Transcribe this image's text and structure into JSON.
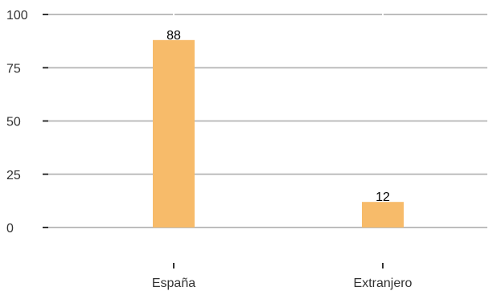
{
  "chart_data": {
    "type": "bar",
    "categories": [
      "España",
      "Extranjero"
    ],
    "values": [
      88,
      12
    ],
    "data_labels": [
      "88",
      "12"
    ],
    "y_ticks": [
      0,
      25,
      50,
      75,
      100
    ],
    "ylim": [
      0,
      100
    ],
    "title": "",
    "xlabel": "",
    "ylabel": "",
    "grid": true,
    "legend": "none"
  },
  "colors": {
    "bar": "#F7BB6A",
    "grid": "#BDBDBD",
    "axis_tick": "#333333",
    "text": "#333333",
    "data_label": "#000000"
  }
}
